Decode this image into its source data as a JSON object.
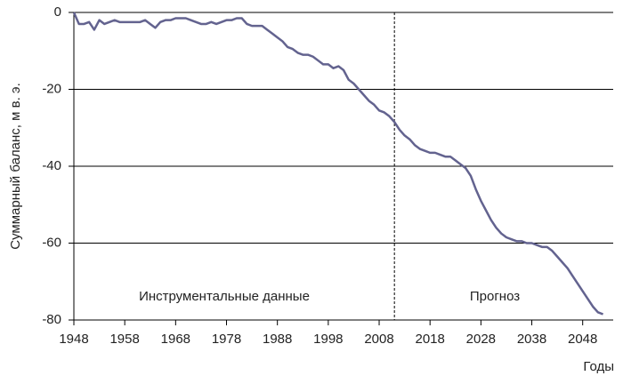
{
  "chart_data": {
    "type": "line",
    "y_label": "Суммарный баланс,  м в. э.",
    "x_label": "Годы",
    "annotations": [
      "Инструментальные данные",
      "Прогноз"
    ],
    "divider_x": 2011,
    "x": [
      1948,
      1949,
      1950,
      1951,
      1952,
      1953,
      1954,
      1955,
      1956,
      1957,
      1958,
      1959,
      1960,
      1961,
      1962,
      1963,
      1964,
      1965,
      1966,
      1967,
      1968,
      1969,
      1970,
      1971,
      1972,
      1973,
      1974,
      1975,
      1976,
      1977,
      1978,
      1979,
      1980,
      1981,
      1982,
      1983,
      1984,
      1985,
      1986,
      1987,
      1988,
      1989,
      1990,
      1991,
      1992,
      1993,
      1994,
      1995,
      1996,
      1997,
      1998,
      1999,
      2000,
      2001,
      2002,
      2003,
      2004,
      2005,
      2006,
      2007,
      2008,
      2009,
      2010,
      2011,
      2012,
      2013,
      2014,
      2015,
      2016,
      2017,
      2018,
      2019,
      2020,
      2021,
      2022,
      2023,
      2024,
      2025,
      2026,
      2027,
      2028,
      2029,
      2030,
      2031,
      2032,
      2033,
      2034,
      2035,
      2036,
      2037,
      2038,
      2039,
      2040,
      2041,
      2042,
      2043,
      2044,
      2045,
      2046,
      2047,
      2048,
      2049,
      2050,
      2051,
      2052
    ],
    "values": [
      0,
      -3,
      -3,
      -2.5,
      -4.5,
      -2,
      -3,
      -2.5,
      -2,
      -2.5,
      -2.5,
      -2.5,
      -2.5,
      -2.5,
      -2,
      -3,
      -4,
      -2.5,
      -2,
      -2,
      -1.5,
      -1.5,
      -1.5,
      -2,
      -2.5,
      -3,
      -3,
      -2.5,
      -3,
      -2.5,
      -2,
      -2,
      -1.5,
      -1.5,
      -3,
      -3.5,
      -3.5,
      -3.5,
      -4.5,
      -5.5,
      -6.5,
      -7.5,
      -9,
      -9.5,
      -10.5,
      -11,
      -11,
      -11.5,
      -12.5,
      -13.5,
      -13.5,
      -14.5,
      -14,
      -15,
      -17.5,
      -18.5,
      -20,
      -21.5,
      -23,
      -24,
      -25.5,
      -26,
      -27,
      -28.5,
      -30.5,
      -32,
      -33,
      -34.5,
      -35.5,
      -36,
      -36.5,
      -36.5,
      -37,
      -37.5,
      -37.5,
      -38.5,
      -39.5,
      -40.5,
      -42.5,
      -46,
      -49,
      -51.5,
      -54,
      -56,
      -57.5,
      -58.5,
      -59,
      -59.5,
      -59.5,
      -60,
      -60,
      -60.5,
      -61,
      -61,
      -62,
      -63.5,
      -65,
      -66.5,
      -68.5,
      -70.5,
      -72.5,
      -74.5,
      -76.5,
      -78,
      -78.5
    ],
    "color": "#63638f",
    "xlim": [
      1948,
      2054
    ],
    "xticks": [
      1948,
      1958,
      1968,
      1978,
      1988,
      1998,
      2008,
      2018,
      2028,
      2038,
      2048
    ],
    "ylim": [
      -80,
      0
    ],
    "yticks": [
      -80,
      -60,
      -40,
      -20,
      0
    ],
    "grid": true
  }
}
